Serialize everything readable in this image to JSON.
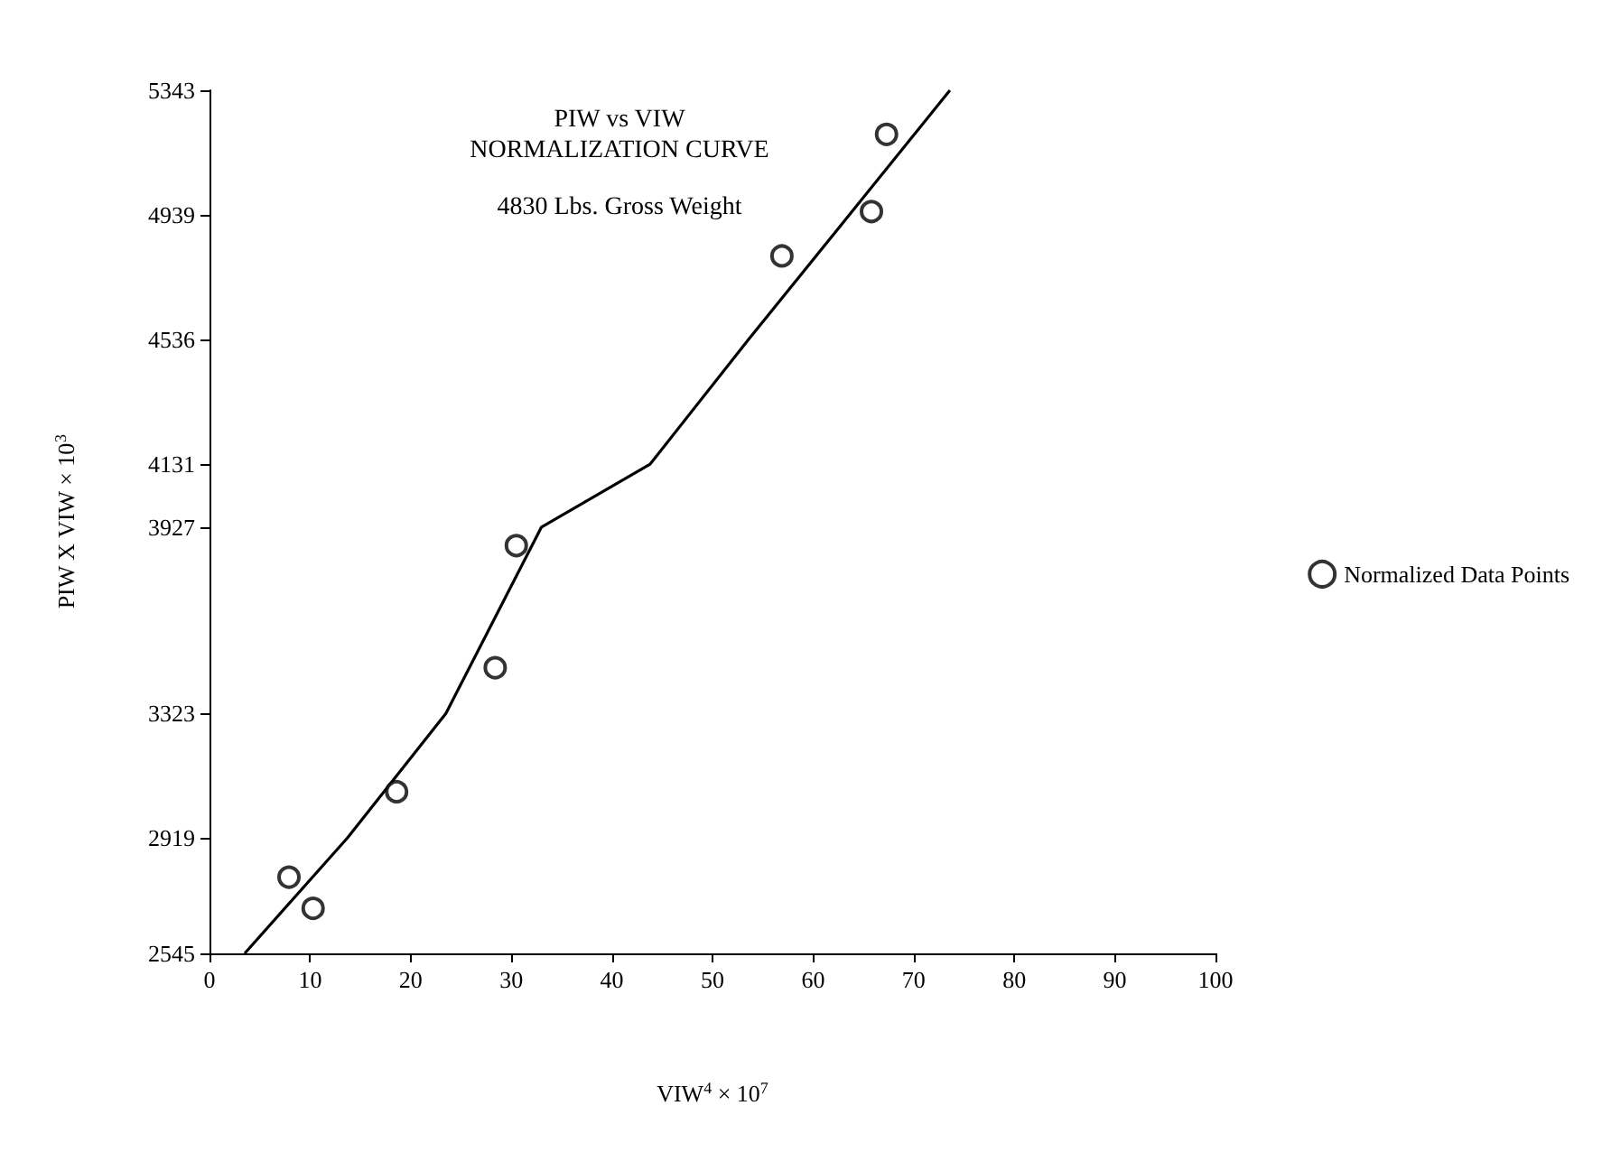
{
  "chart_data": {
    "type": "scatter",
    "title": "PIW vs VIW\nNORMALIZATION CURVE",
    "subtitle": "4830 Lbs. Gross Weight",
    "xlabel": "VIW$^{4}$ × 10$^{7}$",
    "ylabel": "PIW X VIW × 10$^{3}$",
    "xlim": [
      0,
      100
    ],
    "xticks": [
      0,
      10,
      20,
      30,
      40,
      50,
      60,
      70,
      80,
      90,
      100
    ],
    "ylim": [
      2545,
      5343
    ],
    "yticks": [
      2545,
      2919,
      3323,
      3927,
      4131,
      4536,
      4939,
      5343
    ],
    "grid": false,
    "legend": "right",
    "marker": "circle",
    "series": [
      {
        "name": "Normalized Data Points",
        "color": "#000000",
        "x": [
          7.9,
          10.3,
          18.6,
          28.4,
          30.5,
          56.9,
          65.8,
          67.3
        ],
        "values": [
          2792,
          2691,
          3069,
          3471,
          3867,
          4806,
          4950,
          5200
        ]
      },
      {
        "type": "line",
        "color": "#000000",
        "marker": "none",
        "line_style": "solid",
        "x": [
          3.5,
          13.7,
          23.5,
          33,
          43.8,
          53.6,
          63.6,
          73.6
        ],
        "values": [
          2545,
          2919,
          3323,
          3927,
          4131,
          4536,
          4939,
          5343
        ]
      }
    ]
  }
}
